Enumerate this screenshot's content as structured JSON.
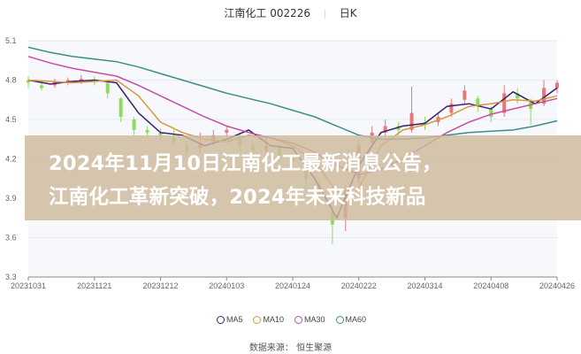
{
  "header": {
    "stock_name": "江南化工",
    "stock_code": "002226",
    "period": "日K"
  },
  "banner": {
    "line1": "2024年11月10日江南化工最新消息公告，",
    "line2": "江南化工革新突破，2024年未来科技新品"
  },
  "source": "数据来源：  恒生聚源",
  "colors": {
    "up": "#e8777a",
    "down": "#8edc5a",
    "MA5": "#3d1f6e",
    "MA10": "#d99640",
    "MA30": "#c54da5",
    "MA60": "#3c8d88"
  },
  "chart_data": {
    "type": "candlestick",
    "title": "江南化工 002226 日K",
    "ylim": [
      3.3,
      5.1
    ],
    "y_ticks": [
      "5.1",
      "4.8",
      "4.5",
      "4.2",
      "3.9",
      "3.6",
      "3.3"
    ],
    "x_ticks": [
      "20231031",
      "20231121",
      "20231212",
      "20240103",
      "20240124",
      "20240222",
      "20240314",
      "20240408",
      "20240426"
    ],
    "grid": true,
    "legend_position": "bottom",
    "candles": [
      [
        0,
        4.8,
        4.78,
        4.83,
        4.74
      ],
      [
        3,
        4.76,
        4.74,
        4.79,
        4.72
      ],
      [
        6,
        4.76,
        4.79,
        4.81,
        4.74
      ],
      [
        9,
        4.78,
        4.8,
        4.82,
        4.76
      ],
      [
        12,
        4.79,
        4.81,
        4.84,
        4.77
      ],
      [
        15,
        4.8,
        4.79,
        4.83,
        4.76
      ],
      [
        18,
        4.78,
        4.7,
        4.79,
        4.66
      ],
      [
        21,
        4.66,
        4.52,
        4.67,
        4.48
      ],
      [
        24,
        4.5,
        4.42,
        4.52,
        4.38
      ],
      [
        27,
        4.42,
        4.4,
        4.45,
        4.36
      ],
      [
        30,
        4.4,
        4.38,
        4.43,
        4.34
      ],
      [
        33,
        4.36,
        4.33,
        4.42,
        4.3
      ],
      [
        36,
        4.3,
        4.26,
        4.34,
        4.22
      ],
      [
        39,
        4.28,
        4.32,
        4.4,
        4.24
      ],
      [
        42,
        4.33,
        4.38,
        4.42,
        4.3
      ],
      [
        45,
        4.4,
        4.42,
        4.45,
        4.36
      ],
      [
        48,
        4.36,
        4.3,
        4.4,
        4.26
      ],
      [
        51,
        4.3,
        4.27,
        4.34,
        4.2
      ],
      [
        54,
        4.26,
        4.3,
        4.36,
        4.22
      ],
      [
        57,
        4.28,
        4.22,
        4.32,
        4.18
      ],
      [
        60,
        4.22,
        4.18,
        4.26,
        4.12
      ],
      [
        63,
        4.15,
        4.05,
        4.18,
        3.98
      ],
      [
        66,
        4.0,
        3.92,
        4.05,
        3.85
      ],
      [
        69,
        3.8,
        3.7,
        3.9,
        3.55
      ],
      [
        72,
        3.75,
        3.95,
        4.0,
        3.65
      ],
      [
        75,
        4.05,
        4.3,
        4.35,
        4.0
      ],
      [
        78,
        4.32,
        4.4,
        4.45,
        4.28
      ],
      [
        81,
        4.4,
        4.45,
        4.5,
        4.36
      ],
      [
        84,
        4.45,
        4.42,
        4.48,
        4.38
      ],
      [
        87,
        4.42,
        4.55,
        4.75,
        4.4
      ],
      [
        90,
        4.48,
        4.46,
        4.52,
        4.42
      ],
      [
        93,
        4.48,
        4.52,
        4.55,
        4.45
      ],
      [
        96,
        4.55,
        4.62,
        4.66,
        4.52
      ],
      [
        99,
        4.65,
        4.72,
        4.76,
        4.62
      ],
      [
        102,
        4.66,
        4.6,
        4.68,
        4.56
      ],
      [
        105,
        4.58,
        4.52,
        4.6,
        4.48
      ],
      [
        108,
        4.55,
        4.7,
        4.76,
        4.52
      ],
      [
        111,
        4.7,
        4.66,
        4.74,
        4.62
      ],
      [
        114,
        4.64,
        4.58,
        4.66,
        4.46
      ],
      [
        117,
        4.62,
        4.74,
        4.8,
        4.6
      ],
      [
        120,
        4.74,
        4.78,
        4.8,
        4.7
      ]
    ],
    "series": [
      {
        "name": "MA5",
        "values": [
          4.8,
          4.77,
          4.79,
          4.8,
          4.78,
          4.55,
          4.4,
          4.38,
          4.3,
          4.35,
          4.42,
          4.3,
          4.28,
          4.05,
          3.75,
          4.15,
          4.4,
          4.45,
          4.47,
          4.6,
          4.62,
          4.58,
          4.71,
          4.62,
          4.74
        ]
      },
      {
        "name": "MA10",
        "values": [
          4.8,
          4.79,
          4.78,
          4.79,
          4.8,
          4.68,
          4.48,
          4.4,
          4.35,
          4.33,
          4.38,
          4.36,
          4.3,
          4.18,
          3.95,
          3.98,
          4.3,
          4.42,
          4.46,
          4.52,
          4.6,
          4.62,
          4.65,
          4.64,
          4.68
        ]
      },
      {
        "name": "MA30",
        "values": [
          4.98,
          4.93,
          4.89,
          4.86,
          4.83,
          4.76,
          4.68,
          4.6,
          4.52,
          4.45,
          4.4,
          4.36,
          4.32,
          4.25,
          4.15,
          4.08,
          4.12,
          4.2,
          4.3,
          4.4,
          4.48,
          4.54,
          4.58,
          4.62,
          4.66
        ]
      },
      {
        "name": "MA60",
        "values": [
          5.05,
          5.01,
          4.98,
          4.96,
          4.94,
          4.9,
          4.85,
          4.8,
          4.75,
          4.7,
          4.66,
          4.62,
          4.57,
          4.52,
          4.45,
          4.38,
          4.35,
          4.35,
          4.36,
          4.38,
          4.4,
          4.41,
          4.42,
          4.45,
          4.49
        ]
      }
    ]
  }
}
